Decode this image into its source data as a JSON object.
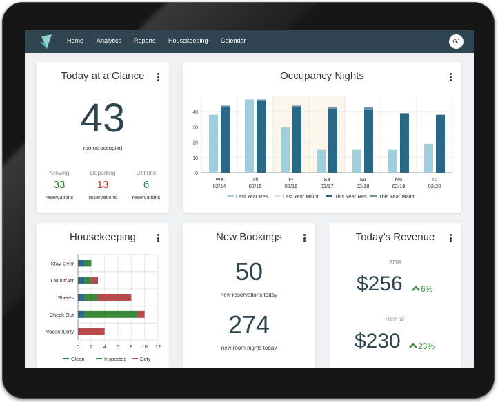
{
  "nav": {
    "links": [
      "Home",
      "Analytics",
      "Reports",
      "Housekeeping",
      "Calendar"
    ],
    "avatar": "GJ"
  },
  "glance": {
    "title": "Today at a Glance",
    "rooms_value": "43",
    "rooms_label": "rooms occupied",
    "stats": [
      {
        "label": "Arriving",
        "value": "33",
        "unit": "reservations",
        "color": "#2e7d32"
      },
      {
        "label": "Departing",
        "value": "13",
        "unit": "reservations",
        "color": "#c0392b"
      },
      {
        "label": "Definite",
        "value": "6",
        "unit": "reservations",
        "color": "#2a6f97"
      }
    ]
  },
  "occupancy": {
    "title": "Occupancy Nights",
    "chart_data": {
      "type": "bar",
      "categories": [
        "We",
        "Th",
        "Fr",
        "Sa",
        "Su",
        "Mo",
        "Tu"
      ],
      "dates": [
        "02/14",
        "02/15",
        "02/16",
        "02/17",
        "02/18",
        "02/19",
        "02/20"
      ],
      "series": [
        {
          "name": "Last Year Res.",
          "values": [
            38,
            48,
            30,
            15,
            15,
            15,
            19
          ],
          "color": "#9ecfdc"
        },
        {
          "name": "Last Year Maint.",
          "values": [
            0,
            0,
            0,
            0,
            0,
            0,
            0
          ],
          "color": "#d4e8ee"
        },
        {
          "name": "This Year Res.",
          "values": [
            43,
            47,
            43,
            42,
            41,
            39,
            38
          ],
          "color": "#2a6887"
        },
        {
          "name": "This Year Maint.",
          "values": [
            1,
            1,
            1,
            1,
            2,
            0,
            0
          ],
          "color": "#6b95b0"
        }
      ],
      "ylim": [
        0,
        50
      ],
      "yticks": [
        "0",
        "10",
        "20",
        "30",
        "40"
      ],
      "weekend_highlight": [
        "Fr",
        "Sa"
      ]
    }
  },
  "housekeeping": {
    "title": "Housekeeping",
    "chart_data": {
      "type": "bar",
      "orientation": "horizontal",
      "stacked": true,
      "categories": [
        "Stay Over",
        "CkOut/Arr",
        "Sheets",
        "Check Out",
        "Vacant/Dirty"
      ],
      "series": [
        {
          "name": "Clean",
          "values": [
            1,
            1,
            1,
            1,
            0
          ],
          "color": "#2a6887"
        },
        {
          "name": "Inspected",
          "values": [
            1,
            1,
            2,
            8,
            0
          ],
          "color": "#3a8a3a"
        },
        {
          "name": "Dirty",
          "values": [
            0,
            1,
            5,
            1,
            4
          ],
          "color": "#b84a4a"
        }
      ],
      "xlim": [
        0,
        12
      ],
      "xticks": [
        "0",
        "2",
        "4",
        "6",
        "8",
        "10",
        "12"
      ]
    }
  },
  "bookings": {
    "title": "New Bookings",
    "reservations_value": "50",
    "reservations_label": "new reservations today",
    "nights_value": "274",
    "nights_label": "new room nights today"
  },
  "revenue": {
    "title": "Today's Revenue",
    "adr_label": "ADR",
    "adr_value": "$256",
    "adr_change": "6%",
    "revpar_label": "RevPar",
    "revpar_value": "$230",
    "revpar_change": "23%"
  },
  "icons": {
    "logo": "sail-logo-icon",
    "menu": "kebab-menu-icon",
    "trend_up": "chevron-up-icon"
  }
}
